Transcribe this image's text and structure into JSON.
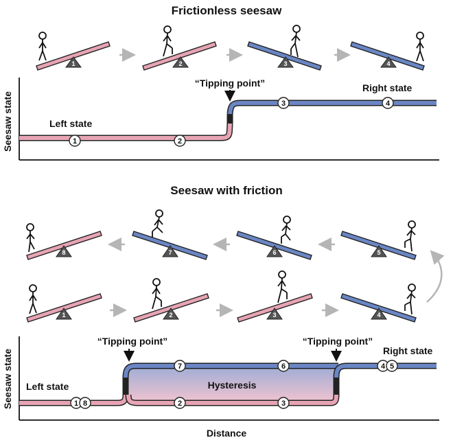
{
  "panel_top": {
    "title": "Frictionless seesaw",
    "y_axis_label": "Seesaw state",
    "left_state_label": "Left state",
    "right_state_label": "Right state",
    "tipping_point_label": "“Tipping point”",
    "seesaws": [
      "1",
      "2",
      "3",
      "4"
    ],
    "markers": [
      "1",
      "2",
      "3",
      "4"
    ]
  },
  "panel_bottom": {
    "title": "Seesaw with friction",
    "y_axis_label": "Seesaw state",
    "x_axis_label": "Distance",
    "left_state_label": "Left state",
    "right_state_label": "Right state",
    "tipping_point_left_label": "“Tipping point”",
    "tipping_point_right_label": "“Tipping point”",
    "hysteresis_label": "Hysteresis",
    "seesaws_upper": [
      "8",
      "7",
      "6",
      "5"
    ],
    "seesaws_lower": [
      "1",
      "2",
      "3",
      "4"
    ],
    "markers_lower_line": [
      "1",
      "8",
      "2",
      "3"
    ],
    "markers_upper_line": [
      "7",
      "6",
      "4",
      "5"
    ]
  },
  "colors": {
    "left_state": "#e7a4b4",
    "right_state": "#6a86c4",
    "arrow": "#b5b5b5",
    "outline": "#222222"
  }
}
